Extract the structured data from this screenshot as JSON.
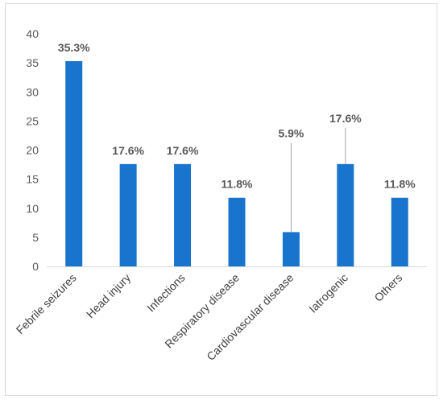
{
  "chart_data": {
    "type": "bar",
    "categories": [
      "Febrile seizures",
      "Head injury",
      "Infections",
      "Respiratory disease",
      "Cardiovascular disease",
      "Iatrogenic",
      "Others"
    ],
    "values": [
      35.3,
      17.6,
      17.6,
      11.8,
      5.9,
      17.6,
      11.8
    ],
    "data_labels": [
      "35.3%",
      "17.6%",
      "17.6%",
      "11.8%",
      "5.9%",
      "17.6%",
      "11.8%"
    ],
    "ylim": [
      0,
      40
    ],
    "yticks": [
      0,
      5,
      10,
      15,
      20,
      25,
      30,
      35,
      40
    ],
    "title": "",
    "xlabel": "",
    "ylabel": "",
    "grid": false,
    "legend": "none",
    "bar_color": "#1874CD",
    "leader_line_color": "#A6A6A6",
    "frame_color": "#D9D9D9"
  }
}
